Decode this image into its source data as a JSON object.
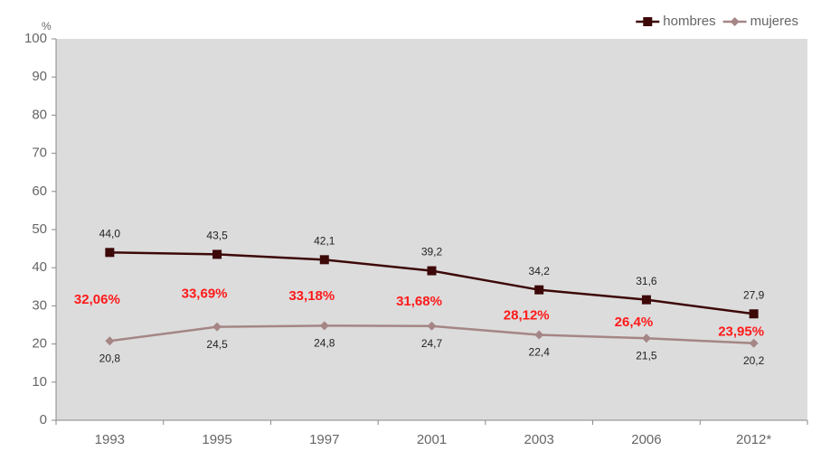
{
  "chart_data": {
    "type": "line",
    "y_unit": "%",
    "categories": [
      "1993",
      "1995",
      "1997",
      "2001",
      "2003",
      "2006",
      "2012*"
    ],
    "series": [
      {
        "name": "hombres",
        "color": "#3d0808",
        "marker": "square",
        "values": [
          44.0,
          43.5,
          42.1,
          39.2,
          34.2,
          31.6,
          27.9
        ],
        "value_labels": [
          "44,0",
          "43,5",
          "42,1",
          "39,2",
          "34,2",
          "31,6",
          "27,9"
        ]
      },
      {
        "name": "mujeres",
        "color": "#a58585",
        "marker": "diamond",
        "values": [
          20.8,
          24.5,
          24.8,
          24.7,
          22.4,
          21.5,
          20.2
        ],
        "value_labels": [
          "20,8",
          "24,5",
          "24,8",
          "24,7",
          "22,4",
          "21,5",
          "20,2"
        ]
      }
    ],
    "annotations": [
      "32,06%",
      "33,69%",
      "33,18%",
      "31,68%",
      "28,12%",
      "26,4%",
      "23,95%"
    ],
    "annotation_color": "#ff1a1a",
    "ylim": [
      0,
      100
    ],
    "yticks": [
      0,
      10,
      20,
      30,
      40,
      50,
      60,
      70,
      80,
      90,
      100
    ],
    "legend": "top-right",
    "grid": false
  }
}
